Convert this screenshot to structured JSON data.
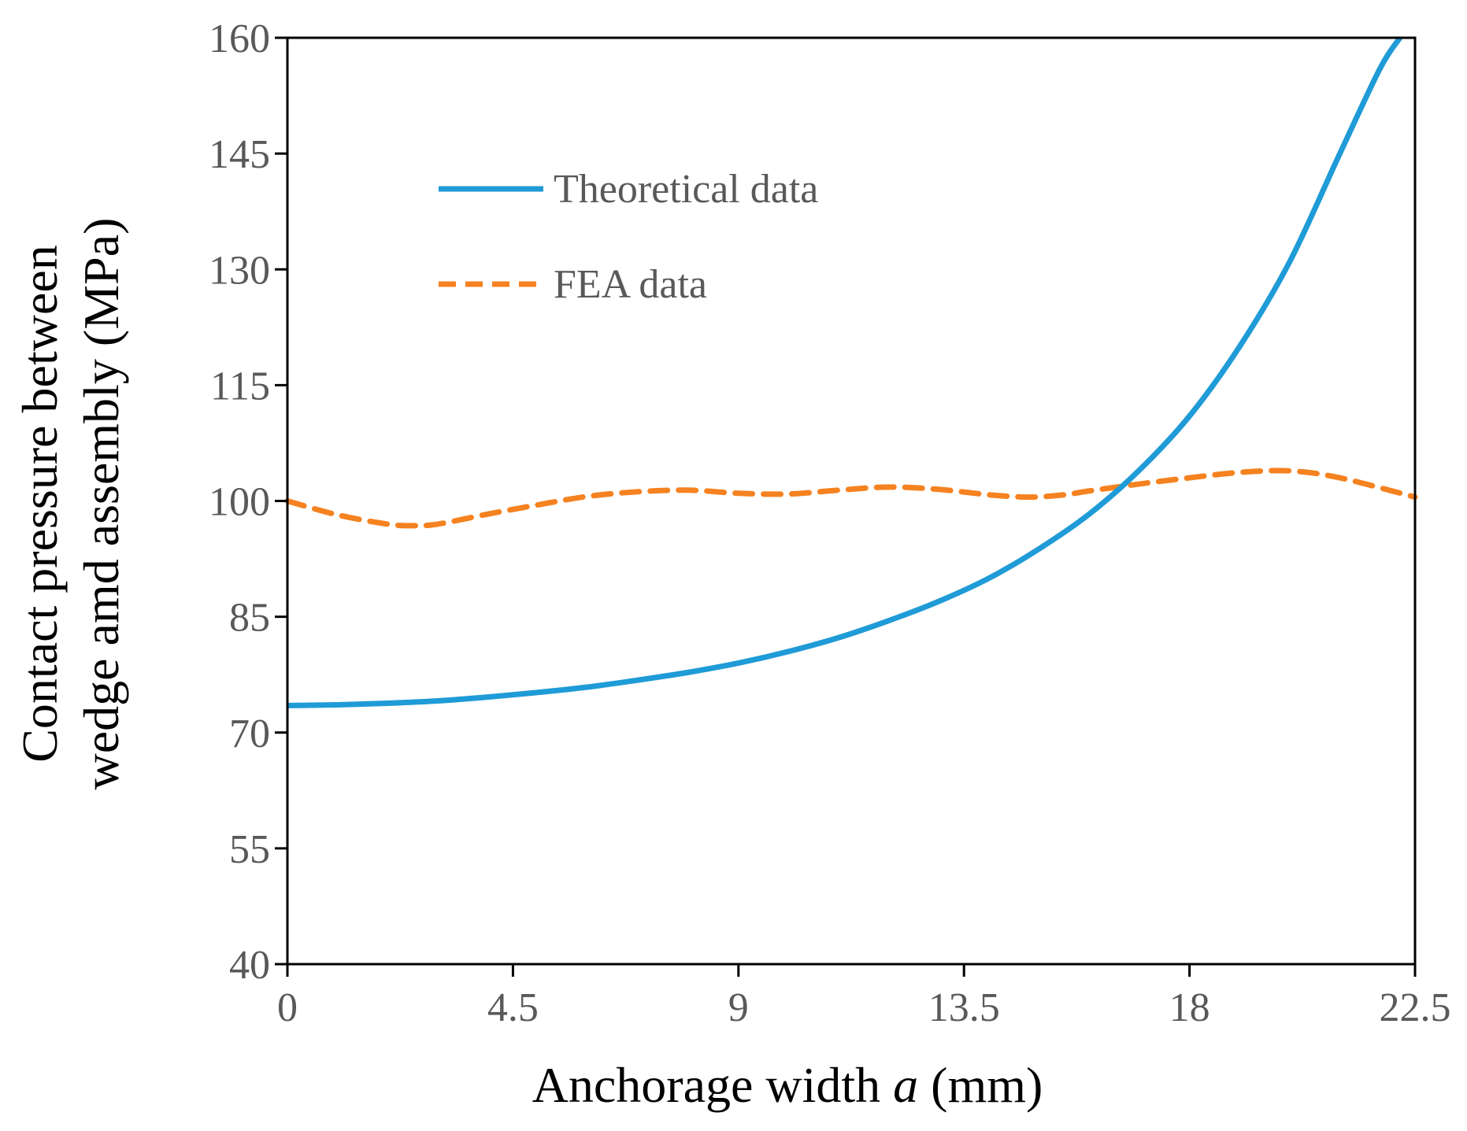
{
  "chart_data": {
    "type": "line",
    "title": "",
    "xlabel_prefix": "Anchorage width ",
    "xlabel_var": "a",
    "xlabel_suffix": " (mm)",
    "ylabel_line1": "Contact pressure between",
    "ylabel_line2": "wedge amd assembly (MPa)",
    "xlim": [
      0,
      22.5
    ],
    "ylim": [
      40,
      160
    ],
    "x_ticks": [
      0,
      4.5,
      9,
      13.5,
      18,
      22.5
    ],
    "x_tick_labels": [
      "0",
      "4.5",
      "9",
      "13.5",
      "18",
      "22.5"
    ],
    "y_ticks": [
      40,
      55,
      70,
      85,
      100,
      115,
      130,
      145,
      160
    ],
    "y_tick_labels": [
      "40",
      "55",
      "70",
      "85",
      "100",
      "115",
      "130",
      "145",
      "160"
    ],
    "grid": false,
    "legend_position": "top-left",
    "series": [
      {
        "name": "Theoretical data",
        "color": "#1f9bd7",
        "style": "solid",
        "x": [
          0,
          1,
          2,
          3,
          4,
          5,
          6,
          7,
          8,
          9,
          10,
          11,
          12,
          13,
          14,
          15,
          16,
          17,
          18,
          19,
          20,
          21,
          21.8,
          22.2
        ],
        "y": [
          73.5,
          73.6,
          73.8,
          74.1,
          74.6,
          75.2,
          75.9,
          76.8,
          77.8,
          79.0,
          80.5,
          82.3,
          84.5,
          87.0,
          90.0,
          93.8,
          98.3,
          104.0,
          111.0,
          120.0,
          131.0,
          145.0,
          156.0,
          160.0
        ]
      },
      {
        "name": "FEA data",
        "color": "#f58220",
        "style": "dashed",
        "x": [
          0,
          1,
          2,
          2.5,
          3,
          4,
          5,
          6,
          7,
          8,
          9,
          10,
          11,
          12,
          13,
          14,
          14.8,
          15.5,
          16,
          17,
          18,
          19,
          20,
          21,
          22.5
        ],
        "y": [
          100,
          98.2,
          97.0,
          96.8,
          97.0,
          98.3,
          99.5,
          100.6,
          101.2,
          101.4,
          101.0,
          100.9,
          101.4,
          101.8,
          101.5,
          100.8,
          100.5,
          100.8,
          101.3,
          102.2,
          103.0,
          103.7,
          103.9,
          103.0,
          100.5
        ]
      }
    ]
  }
}
